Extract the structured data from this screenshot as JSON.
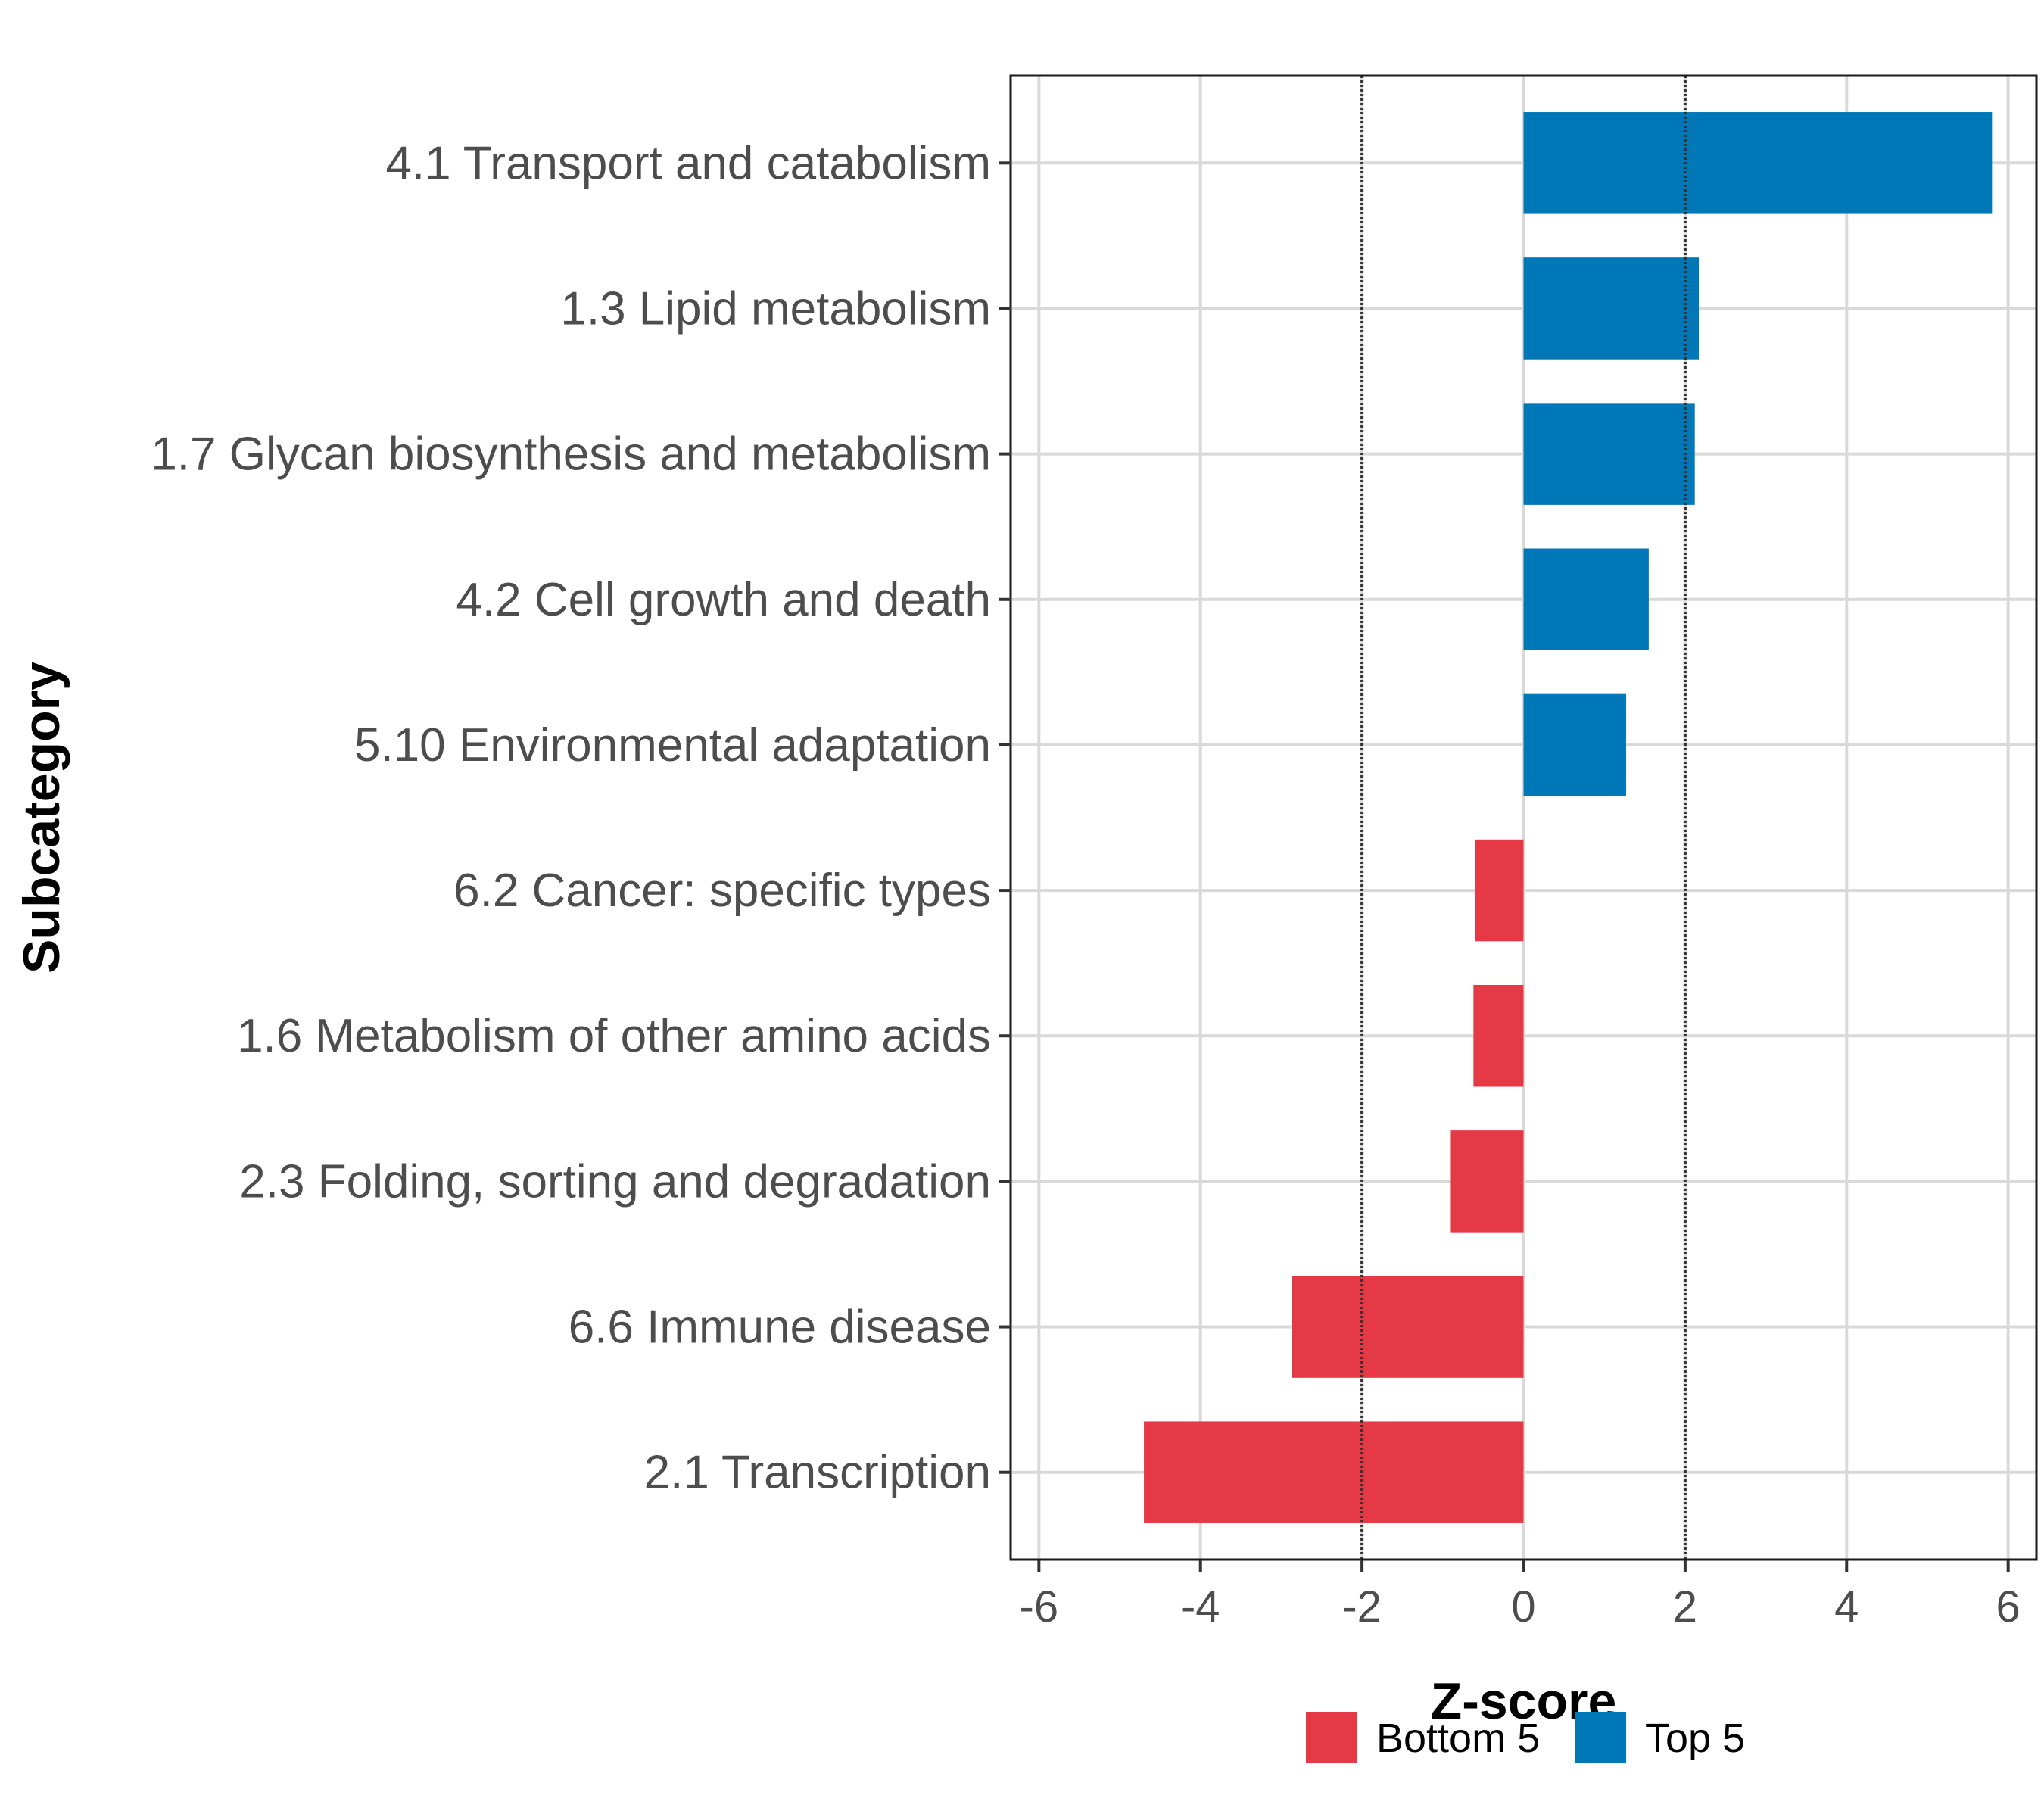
{
  "chart_data": {
    "type": "bar",
    "orientation": "horizontal",
    "title": "",
    "xlabel": "Z-score",
    "ylabel": "Subcategory",
    "xlim": [
      -6.35,
      6.35
    ],
    "xticks": [
      -6,
      -4,
      -2,
      0,
      2,
      4,
      6
    ],
    "xtick_labels": [
      "-6",
      "-4",
      "-2",
      "0",
      "2",
      "4",
      "6"
    ],
    "reference_lines": [
      -2,
      2
    ],
    "grid": true,
    "legend_position": "bottom",
    "categories": [
      "4.1 Transport and catabolism",
      "1.3 Lipid metabolism",
      "1.7 Glycan biosynthesis and metabolism",
      "4.2 Cell growth and death",
      "5.10 Environmental adaptation",
      "6.2 Cancer: specific types",
      "1.6 Metabolism of other amino acids",
      "2.3 Folding, sorting and degradation",
      "6.6 Immune disease",
      "2.1 Transcription"
    ],
    "values": [
      5.8,
      2.17,
      2.12,
      1.55,
      1.27,
      -0.6,
      -0.62,
      -0.9,
      -2.87,
      -4.7
    ],
    "groups": [
      "Top 5",
      "Top 5",
      "Top 5",
      "Top 5",
      "Top 5",
      "Bottom 5",
      "Bottom 5",
      "Bottom 5",
      "Bottom 5",
      "Bottom 5"
    ],
    "legend": [
      {
        "name": "Bottom 5",
        "color": "#e63946"
      },
      {
        "name": "Top 5",
        "color": "#0077b6"
      }
    ]
  }
}
